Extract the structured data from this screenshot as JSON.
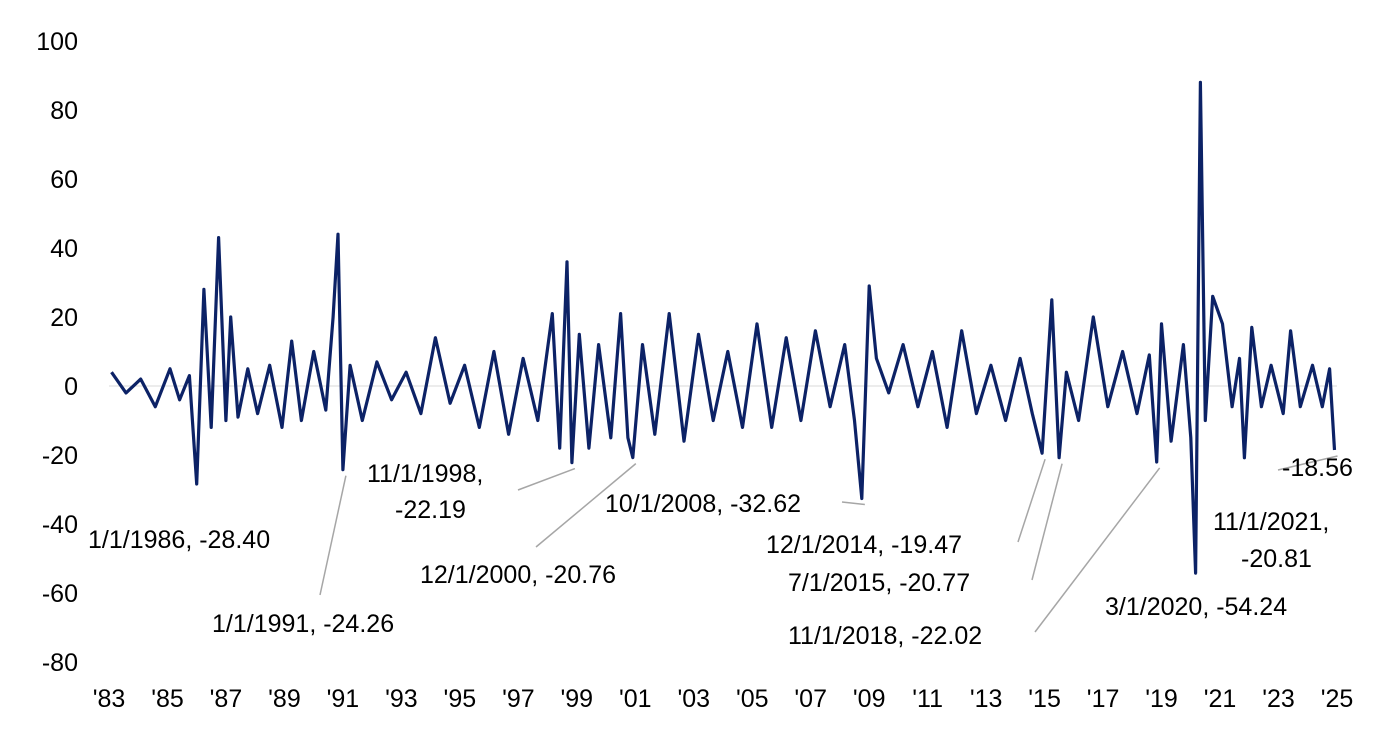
{
  "chart_data": {
    "type": "line",
    "title": "",
    "xlabel": "",
    "ylabel": "",
    "ylim": [
      -80,
      100
    ],
    "yticks": [
      100,
      80,
      60,
      40,
      20,
      0,
      -20,
      -40,
      -60,
      -80
    ],
    "xlim": [
      "1983-01-01",
      "2025-01-01"
    ],
    "xtick_labels": [
      "'83",
      "'85",
      "'87",
      "'89",
      "'91",
      "'93",
      "'95",
      "'97",
      "'99",
      "'01",
      "'03",
      "'05",
      "'07",
      "'09",
      "'11",
      "'13",
      "'15",
      "'17",
      "'19",
      "'21",
      "'23",
      "'25"
    ],
    "grid": false,
    "legend": "none",
    "line_color": "#0c2266",
    "series": [
      {
        "x": [
          "1983-02-01",
          "1983-08-01",
          "1984-02-01",
          "1984-08-01",
          "1985-02-01",
          "1985-06-01",
          "1985-10-01",
          "1986-01-01",
          "1986-04-01",
          "1986-07-01",
          "1986-10-01",
          "1987-01-01",
          "1987-03-01",
          "1987-06-01",
          "1987-10-01",
          "1988-02-01",
          "1988-07-01",
          "1988-12-01",
          "1989-04-01",
          "1989-08-01",
          "1990-01-01",
          "1990-06-01",
          "1990-09-01",
          "1990-11-01",
          "1991-01-01",
          "1991-04-01",
          "1991-09-01",
          "1992-03-01",
          "1992-09-01",
          "1993-03-01",
          "1993-09-01",
          "1994-03-01",
          "1994-09-01",
          "1995-03-01",
          "1995-09-01",
          "1996-03-01",
          "1996-09-01",
          "1997-03-01",
          "1997-09-01",
          "1998-03-01",
          "1998-06-01",
          "1998-09-01",
          "1998-11-01",
          "1999-02-01",
          "1999-06-01",
          "1999-10-01",
          "2000-03-01",
          "2000-07-01",
          "2000-10-01",
          "2000-12-01",
          "2001-04-01",
          "2001-09-01",
          "2002-03-01",
          "2002-09-01",
          "2003-03-01",
          "2003-09-01",
          "2004-03-01",
          "2004-09-01",
          "2005-03-01",
          "2005-09-01",
          "2006-03-01",
          "2006-09-01",
          "2007-03-01",
          "2007-09-01",
          "2008-03-01",
          "2008-07-01",
          "2008-10-01",
          "2009-01-01",
          "2009-04-01",
          "2009-09-01",
          "2010-03-01",
          "2010-09-01",
          "2011-03-01",
          "2011-09-01",
          "2012-03-01",
          "2012-09-01",
          "2013-03-01",
          "2013-09-01",
          "2014-03-01",
          "2014-08-01",
          "2014-12-01",
          "2015-04-01",
          "2015-07-01",
          "2015-10-01",
          "2016-03-01",
          "2016-09-01",
          "2017-03-01",
          "2017-09-01",
          "2018-03-01",
          "2018-08-01",
          "2018-11-01",
          "2019-01-01",
          "2019-05-01",
          "2019-10-01",
          "2020-01-01",
          "2020-03-01",
          "2020-05-01",
          "2020-07-01",
          "2020-10-01",
          "2021-02-01",
          "2021-06-01",
          "2021-09-01",
          "2021-11-01",
          "2022-02-01",
          "2022-06-01",
          "2022-10-01",
          "2023-03-01",
          "2023-06-01",
          "2023-10-01",
          "2024-03-01",
          "2024-07-01",
          "2024-10-01",
          "2024-12-01"
        ],
        "values": [
          4,
          -2,
          2,
          -6,
          5,
          -4,
          3,
          -28.4,
          28,
          -12,
          43,
          -10,
          20,
          -9,
          5,
          -8,
          6,
          -12,
          13,
          -10,
          10,
          -7,
          20,
          44,
          -24.26,
          6,
          -10,
          7,
          -4,
          4,
          -8,
          14,
          -5,
          6,
          -12,
          10,
          -14,
          8,
          -10,
          21,
          -18,
          36,
          -22.19,
          15,
          -18,
          12,
          -15,
          21,
          -15,
          -20.76,
          12,
          -14,
          21,
          -16,
          15,
          -10,
          10,
          -12,
          18,
          -12,
          14,
          -10,
          16,
          -6,
          12,
          -10,
          -32.62,
          29,
          8,
          -2,
          12,
          -6,
          10,
          -12,
          16,
          -8,
          6,
          -10,
          8,
          -8,
          -19.47,
          25,
          -20.77,
          4,
          -10,
          20,
          -6,
          10,
          -8,
          9,
          -22.02,
          18,
          -16,
          12,
          -15,
          -54.24,
          88,
          -10,
          26,
          18,
          -6,
          8,
          -20.81,
          17,
          -6,
          6,
          -8,
          16,
          -6,
          6,
          -6,
          5,
          -18.56
        ]
      }
    ],
    "annotations": [
      {
        "label": "1/1/1986, -28.40",
        "x": "1986-01-01",
        "y": -28.4
      },
      {
        "label": "1/1/1991, -24.26",
        "x": "1991-01-01",
        "y": -24.26
      },
      {
        "label": "11/1/1998,",
        "label2": "-22.19",
        "x": "1998-11-01",
        "y": -22.19
      },
      {
        "label": "12/1/2000, -20.76",
        "x": "2000-12-01",
        "y": -20.76
      },
      {
        "label": "10/1/2008, -32.62",
        "x": "2008-10-01",
        "y": -32.62
      },
      {
        "label": "12/1/2014, -19.47",
        "x": "2014-12-01",
        "y": -19.47
      },
      {
        "label": "7/1/2015, -20.77",
        "x": "2015-07-01",
        "y": -20.77
      },
      {
        "label": "11/1/2018, -22.02",
        "x": "2018-11-01",
        "y": -22.02
      },
      {
        "label": "3/1/2020, -54.24",
        "x": "2020-03-01",
        "y": -54.24
      },
      {
        "label": "11/1/2021,",
        "label2": "-20.81",
        "x": "2021-11-01",
        "y": -20.81
      },
      {
        "label": "-18.56",
        "x": "2024-12-01",
        "y": -18.56
      }
    ]
  }
}
